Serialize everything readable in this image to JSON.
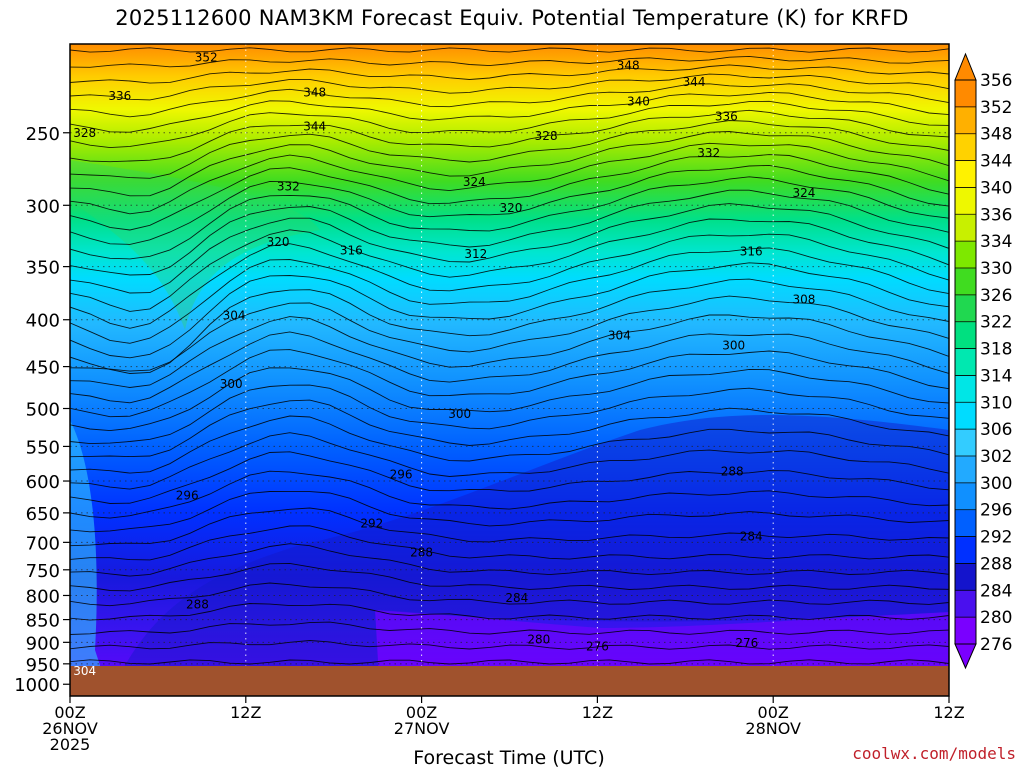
{
  "chart_data": {
    "type": "heatmap",
    "title": "2025112600 NAM3KM Forecast Equiv. Potential Temperature (K) for KRFD",
    "xlabel": "Forecast Time (UTC)",
    "ylabel": "",
    "x_ticks": [
      {
        "hours": 0,
        "lines": [
          "00Z",
          "26NOV",
          "2025"
        ]
      },
      {
        "hours": 12,
        "lines": [
          "12Z"
        ]
      },
      {
        "hours": 24,
        "lines": [
          "00Z",
          "27NOV"
        ]
      },
      {
        "hours": 36,
        "lines": [
          "12Z"
        ]
      },
      {
        "hours": 48,
        "lines": [
          "00Z",
          "28NOV"
        ]
      },
      {
        "hours": 60,
        "lines": [
          "12Z"
        ]
      }
    ],
    "xlim": [
      0,
      60
    ],
    "y_ticks": [
      250,
      300,
      350,
      400,
      450,
      500,
      550,
      600,
      650,
      700,
      750,
      800,
      850,
      900,
      950,
      1000
    ],
    "y_scale": "log-pressure",
    "ylim": [
      200,
      1030
    ],
    "grid": true,
    "colorbar": {
      "levels": [
        276,
        280,
        284,
        288,
        292,
        296,
        300,
        302,
        306,
        310,
        314,
        318,
        322,
        326,
        330,
        334,
        336,
        340,
        344,
        348,
        352,
        356
      ],
      "colors": [
        "#7a00ff",
        "#4a10ee",
        "#1414cc",
        "#0030ff",
        "#0060ff",
        "#1090ff",
        "#22aaff",
        "#33ccff",
        "#00dcff",
        "#00e6e6",
        "#00e8b0",
        "#00e080",
        "#20d850",
        "#40dc20",
        "#7ee800",
        "#c8f000",
        "#eef800",
        "#fff200",
        "#ffd200",
        "#ffb000",
        "#ff8a00"
      ]
    },
    "contour_labels": [
      {
        "t": 9.3,
        "p": 207,
        "label": "352"
      },
      {
        "t": 3.4,
        "p": 228,
        "label": "336"
      },
      {
        "t": 1.0,
        "p": 250,
        "label": "328"
      },
      {
        "t": 16.7,
        "p": 226,
        "label": "348"
      },
      {
        "t": 16.7,
        "p": 246,
        "label": "344"
      },
      {
        "t": 14.9,
        "p": 286,
        "label": "332"
      },
      {
        "t": 14.2,
        "p": 329,
        "label": "320"
      },
      {
        "t": 19.2,
        "p": 336,
        "label": "316"
      },
      {
        "t": 27.7,
        "p": 339,
        "label": "312"
      },
      {
        "t": 11.2,
        "p": 396,
        "label": "304"
      },
      {
        "t": 11.0,
        "p": 470,
        "label": "300"
      },
      {
        "t": 8.0,
        "p": 622,
        "label": "296"
      },
      {
        "t": 26.6,
        "p": 507,
        "label": "300"
      },
      {
        "t": 22.6,
        "p": 590,
        "label": "296"
      },
      {
        "t": 20.6,
        "p": 668,
        "label": "292"
      },
      {
        "t": 24.0,
        "p": 718,
        "label": "288"
      },
      {
        "t": 30.5,
        "p": 805,
        "label": "284"
      },
      {
        "t": 8.7,
        "p": 818,
        "label": "288"
      },
      {
        "t": 37.5,
        "p": 416,
        "label": "304"
      },
      {
        "t": 43.6,
        "p": 263,
        "label": "332"
      },
      {
        "t": 32.5,
        "p": 252,
        "label": "328"
      },
      {
        "t": 27.6,
        "p": 283,
        "label": "324"
      },
      {
        "t": 30.1,
        "p": 302,
        "label": "320"
      },
      {
        "t": 38.8,
        "p": 231,
        "label": "340"
      },
      {
        "t": 38.1,
        "p": 211,
        "label": "348"
      },
      {
        "t": 42.6,
        "p": 220,
        "label": "344"
      },
      {
        "t": 44.8,
        "p": 240,
        "label": "336"
      },
      {
        "t": 50.1,
        "p": 291,
        "label": "324"
      },
      {
        "t": 46.5,
        "p": 337,
        "label": "316"
      },
      {
        "t": 50.1,
        "p": 380,
        "label": "308"
      },
      {
        "t": 45.3,
        "p": 427,
        "label": "300"
      },
      {
        "t": 45.2,
        "p": 586,
        "label": "288"
      },
      {
        "t": 46.5,
        "p": 690,
        "label": "284"
      },
      {
        "t": 46.2,
        "p": 902,
        "label": "276"
      },
      {
        "t": 32.0,
        "p": 894,
        "label": "280"
      },
      {
        "t": 36.0,
        "p": 910,
        "label": "276"
      },
      {
        "t": 1.0,
        "p": 967,
        "label": "304"
      }
    ]
  },
  "credit": "coolwx.com/models"
}
